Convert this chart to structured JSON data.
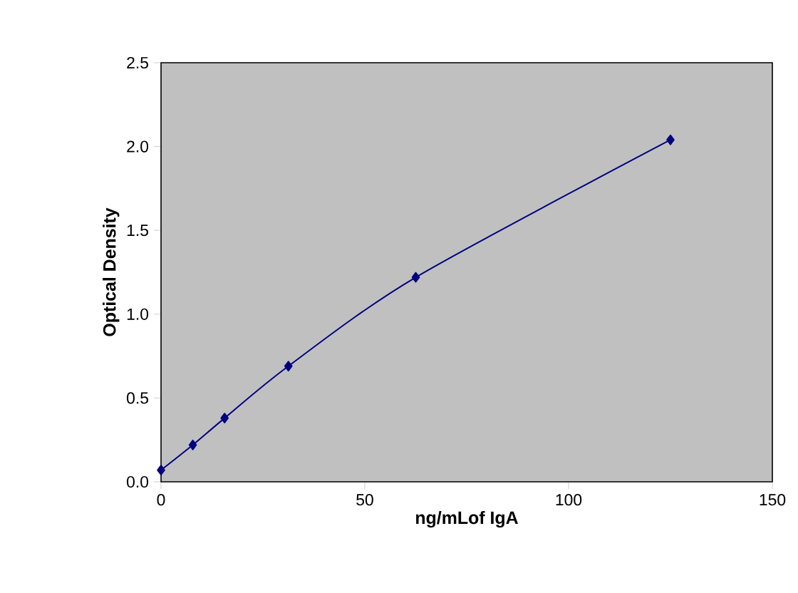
{
  "chart_data": {
    "type": "line",
    "xlabel": "ng/mLof IgA",
    "ylabel": "Optical Density",
    "x": [
      0,
      7.8,
      15.6,
      31.25,
      62.5,
      125
    ],
    "series": [
      {
        "color": "#000080",
        "values": [
          0.07,
          0.22,
          0.38,
          0.69,
          1.22,
          2.04
        ]
      }
    ],
    "xlim": [
      0,
      150
    ],
    "ylim": [
      0,
      2.5
    ],
    "xticks": [
      0,
      50,
      100,
      150
    ],
    "yticks": [
      {
        "value": 0,
        "label": "0.0"
      },
      {
        "value": 0.5,
        "label": "0.5"
      },
      {
        "value": 1,
        "label": "1.0"
      },
      {
        "value": 1.5,
        "label": "1.5"
      },
      {
        "value": 2,
        "label": "2.0"
      },
      {
        "value": 2.5,
        "label": "2.5"
      }
    ],
    "grid": false,
    "marker": "diamond",
    "line_style": "solid"
  }
}
